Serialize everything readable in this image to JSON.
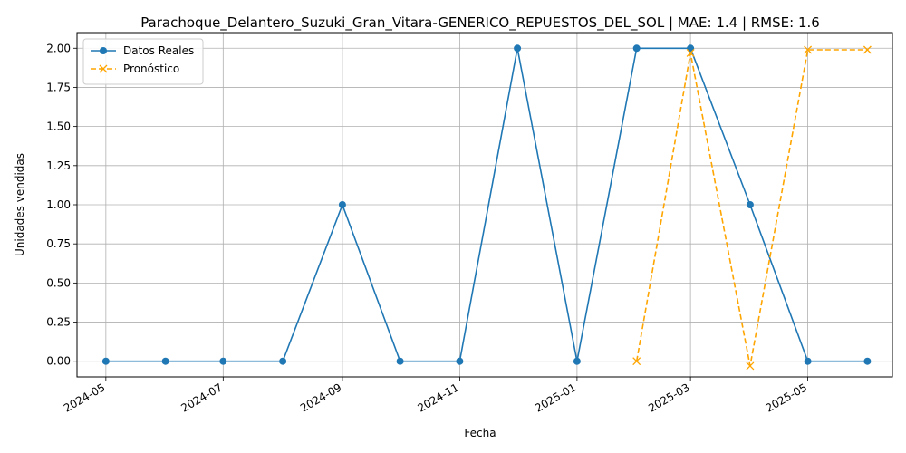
{
  "chart_data": {
    "type": "line",
    "title": "Parachoque_Delantero_Suzuki_Gran_Vitara-GENERICO_REPUESTOS_DEL_SOL | MAE: 1.4 | RMSE: 1.6",
    "xlabel": "Fecha",
    "ylabel": "Unidades vendidas",
    "grid": true,
    "legend_position": "top-left",
    "xlim": [
      "2024-04-16",
      "2025-06-14"
    ],
    "ylim": [
      -0.1,
      2.1
    ],
    "x_ticks": [
      "2024-05",
      "2024-07",
      "2024-09",
      "2024-11",
      "2025-01",
      "2025-03",
      "2025-05"
    ],
    "y_ticks": [
      "0.00",
      "0.25",
      "0.50",
      "0.75",
      "1.00",
      "1.25",
      "1.50",
      "1.75",
      "2.00"
    ],
    "series": [
      {
        "name": "Datos Reales",
        "color": "#1f77b4",
        "marker": "circle",
        "line_style": "solid",
        "x": [
          "2024-05-01",
          "2024-06-01",
          "2024-07-01",
          "2024-08-01",
          "2024-09-01",
          "2024-10-01",
          "2024-11-01",
          "2024-12-01",
          "2025-01-01",
          "2025-02-01",
          "2025-03-01",
          "2025-04-01",
          "2025-05-01",
          "2025-06-01"
        ],
        "values": [
          0,
          0,
          0,
          0,
          1,
          0,
          0,
          2,
          0,
          2,
          2,
          1,
          0,
          0
        ]
      },
      {
        "name": "Pronóstico",
        "color": "#ffa500",
        "marker": "x",
        "line_style": "dashed",
        "x": [
          "2025-02-01",
          "2025-03-01",
          "2025-04-01",
          "2025-05-01",
          "2025-06-01"
        ],
        "values": [
          0.0,
          1.97,
          -0.03,
          1.99,
          1.99
        ]
      }
    ]
  }
}
